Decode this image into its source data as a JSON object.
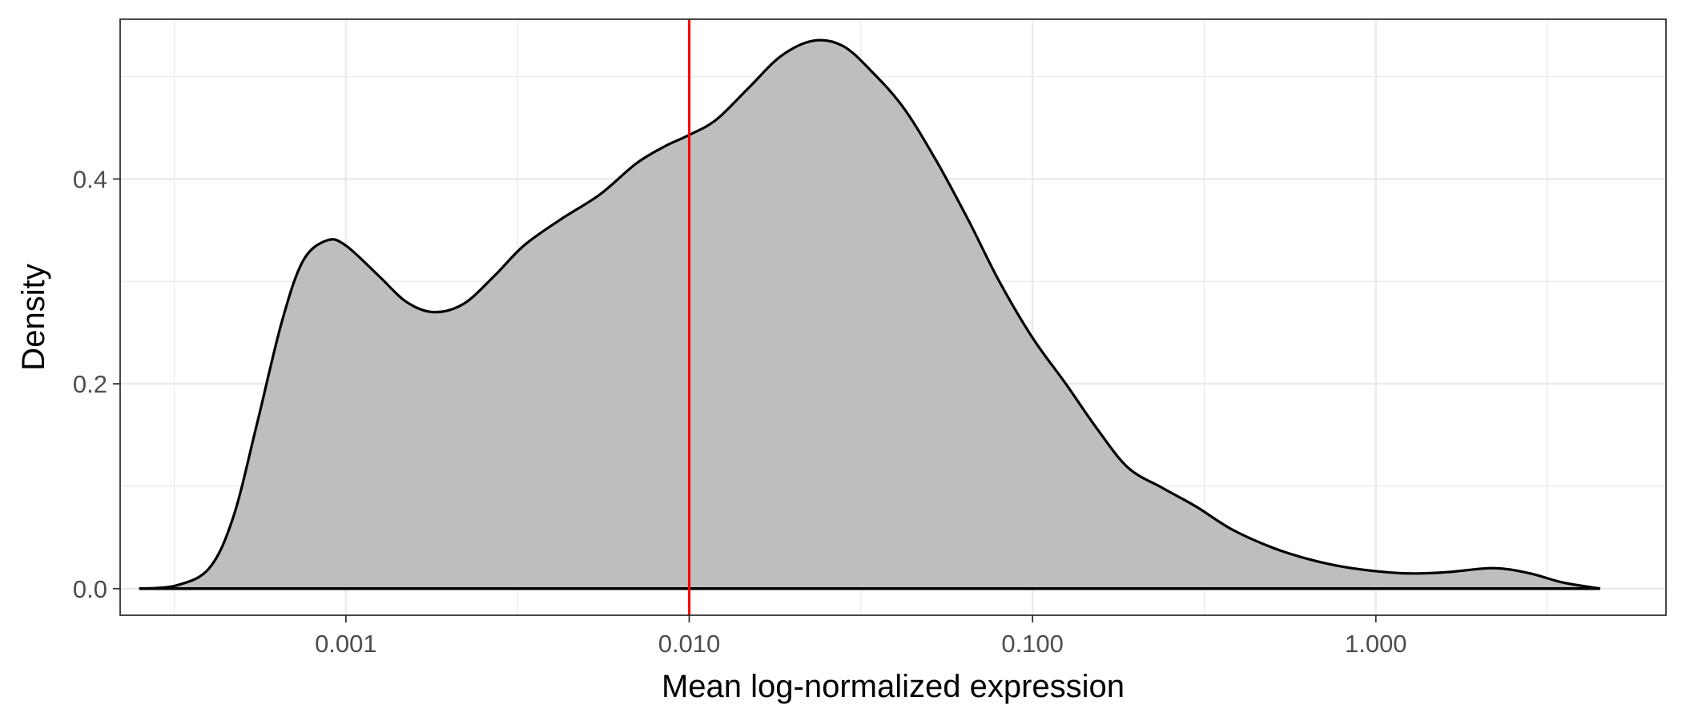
{
  "chart_data": {
    "type": "area",
    "xlabel": "Mean log-normalized expression",
    "ylabel": "Density",
    "x_scale": "log10",
    "xlim": [
      0.00022,
      7.0
    ],
    "ylim": [
      -0.026,
      0.556
    ],
    "x_ticks": [
      {
        "value": 0.001,
        "label": "0.001"
      },
      {
        "value": 0.01,
        "label": "0.010"
      },
      {
        "value": 0.1,
        "label": "0.100"
      },
      {
        "value": 1,
        "label": "1.000"
      }
    ],
    "y_ticks": [
      {
        "value": 0,
        "label": "0.0"
      },
      {
        "value": 0.2,
        "label": "0.2"
      },
      {
        "value": 0.4,
        "label": "0.4"
      }
    ],
    "grid": true,
    "fill_color": "#bebebe",
    "line_color": "#000000",
    "vline": {
      "x": 0.01,
      "color": "#ff0000"
    },
    "series": [
      {
        "x": [
          0.00025,
          0.00032,
          0.0004,
          0.00047,
          0.00055,
          0.00065,
          0.00075,
          0.00088,
          0.001,
          0.00125,
          0.0015,
          0.0018,
          0.0022,
          0.0027,
          0.0033,
          0.0042,
          0.0055,
          0.007,
          0.0085,
          0.01,
          0.012,
          0.015,
          0.0185,
          0.023,
          0.028,
          0.034,
          0.042,
          0.052,
          0.065,
          0.08,
          0.1,
          0.125,
          0.155,
          0.19,
          0.24,
          0.3,
          0.38,
          0.5,
          0.65,
          0.85,
          1.2,
          1.6,
          2.2,
          2.8,
          3.5,
          4.5
        ],
        "y": [
          0.0,
          0.003,
          0.02,
          0.07,
          0.16,
          0.26,
          0.32,
          0.34,
          0.335,
          0.305,
          0.28,
          0.27,
          0.278,
          0.305,
          0.335,
          0.36,
          0.385,
          0.415,
          0.432,
          0.443,
          0.458,
          0.49,
          0.52,
          0.535,
          0.53,
          0.505,
          0.47,
          0.42,
          0.36,
          0.3,
          0.245,
          0.2,
          0.155,
          0.118,
          0.098,
          0.08,
          0.058,
          0.04,
          0.028,
          0.02,
          0.015,
          0.016,
          0.02,
          0.015,
          0.006,
          0.0
        ]
      }
    ]
  }
}
